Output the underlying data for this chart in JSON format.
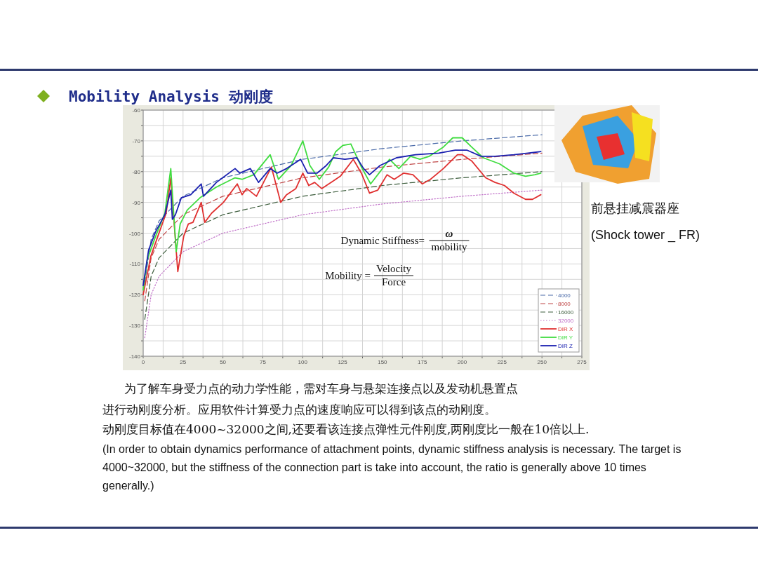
{
  "chart_data": {
    "type": "line",
    "title": "Mobility Analysis 动刚度",
    "xlim": [
      0,
      275
    ],
    "ylim": [
      -140,
      -60
    ],
    "xticks": [
      0,
      {
        "value": 12.5,
        "label": null
      },
      25,
      {
        "value": 37.5,
        "label": null
      },
      50,
      {
        "value": 62.5,
        "label": null
      },
      75,
      {
        "value": 87.5,
        "label": null
      },
      100,
      {
        "value": 112.5,
        "label": null
      },
      125,
      {
        "value": 137.5,
        "label": null
      },
      150,
      {
        "value": 162.5,
        "label": null
      },
      175,
      {
        "value": 187.5,
        "label": null
      },
      200,
      {
        "value": 212.5,
        "label": null
      },
      225,
      {
        "value": 237.5,
        "label": null
      },
      250,
      {
        "value": 262.5,
        "label": null
      },
      275
    ],
    "yticks": [
      -140,
      {
        "value": -135,
        "label": null
      },
      -130,
      {
        "value": -125,
        "label": null
      },
      -120,
      {
        "value": -115,
        "label": null
      },
      -110,
      {
        "value": -105,
        "label": null
      },
      -100,
      {
        "value": -95,
        "label": null
      },
      -90,
      {
        "value": -85,
        "label": null
      },
      -80,
      {
        "value": -75,
        "label": null
      },
      -70,
      {
        "value": -65,
        "label": null
      },
      -60
    ],
    "grid": true,
    "legend": "bottom right",
    "series": [
      {
        "name": "4000",
        "color": "#4a6aa8",
        "line_style": "dashed",
        "x": [
          1,
          5,
          10,
          25,
          50,
          100,
          150,
          200,
          250
        ],
        "values": [
          -116,
          -102,
          -96,
          -88,
          -82,
          -76,
          -72.5,
          -70,
          -68
        ]
      },
      {
        "name": "8000",
        "color": "#c04848",
        "line_style": "dashed",
        "x": [
          1,
          5,
          10,
          25,
          50,
          100,
          150,
          200,
          250
        ],
        "values": [
          -122,
          -108,
          -102,
          -94,
          -88,
          -82,
          -78.5,
          -76,
          -74
        ]
      },
      {
        "name": "16000",
        "color": "#3e5e3e",
        "line_style": "dashed",
        "x": [
          1,
          5,
          10,
          25,
          50,
          100,
          150,
          200,
          250
        ],
        "values": [
          -128,
          -114,
          -108,
          -100,
          -94,
          -88,
          -84.5,
          -82,
          -80
        ]
      },
      {
        "name": "32000",
        "color": "#c070c8",
        "line_style": "dotted",
        "x": [
          1,
          5,
          10,
          25,
          50,
          100,
          150,
          200,
          250
        ],
        "values": [
          -134,
          -120,
          -114,
          -106,
          -100,
          -94,
          -90.5,
          -88,
          -86
        ]
      },
      {
        "name": "DIR X",
        "color": "#e03030",
        "line_style": "solid",
        "x": [
          0,
          4.8,
          9.2,
          14.4,
          17.3,
          21.7,
          25.4,
          28.3,
          31.2,
          36.4,
          38.6,
          42.9,
          50.3,
          59,
          62,
          64.9,
          71,
          80.4,
          86.2,
          89.9,
          95.7,
          100.1,
          103.8,
          107.5,
          111.9,
          119.2,
          123.6,
          131.7,
          136.8,
          141.9,
          147.1,
          152.9,
          157.4,
          163.2,
          169.1,
          175,
          180.1,
          188.2,
          197,
          200,
          205.9,
          214.7,
          220.6,
          226.5,
          232.4,
          239.7,
          244.1,
          249.3
        ],
        "values": [
          -120,
          -107.5,
          -101,
          -93.5,
          -82,
          -112.5,
          -101,
          -97,
          -96.5,
          -90,
          -96.5,
          -93.5,
          -90,
          -84,
          -87.5,
          -85.5,
          -88,
          -78.5,
          -90,
          -87.5,
          -85.5,
          -80.5,
          -84.5,
          -83.5,
          -85.5,
          -83,
          -81.5,
          -76,
          -80.5,
          -87,
          -86,
          -81,
          -82.5,
          -80.5,
          -81,
          -84,
          -82.5,
          -79,
          -74.5,
          -74.5,
          -76.5,
          -82,
          -83.5,
          -84.5,
          -87,
          -89,
          -89,
          -87.5
        ]
      },
      {
        "name": "DIR Y",
        "color": "#40dc40",
        "line_style": "solid",
        "x": [
          0,
          2.6,
          7.8,
          13.6,
          17.3,
          20.7,
          23.2,
          27.6,
          35.6,
          45.9,
          57.6,
          62,
          69.4,
          79.6,
          84.8,
          92.8,
          100.1,
          104.5,
          110.4,
          116.3,
          120.7,
          125.1,
          130.2,
          136.8,
          142.6,
          150,
          154.4,
          160.3,
          167.6,
          173.5,
          179.4,
          188.2,
          194.1,
          200,
          205.9,
          213.2,
          223.5,
          232.4,
          239.7,
          245.6,
          249.3
        ],
        "values": [
          -118.5,
          -108.5,
          -101,
          -93.5,
          -79,
          -106,
          -97,
          -92.5,
          -88.5,
          -85,
          -82,
          -82.5,
          -81,
          -74.5,
          -82.5,
          -78,
          -70,
          -78,
          -82.5,
          -78.5,
          -73.5,
          -71.5,
          -71,
          -78.5,
          -84,
          -79,
          -76,
          -79,
          -75,
          -76,
          -75,
          -72,
          -69,
          -69,
          -72,
          -75.5,
          -77.5,
          -80.5,
          -81.5,
          -81,
          -80.5
        ]
      },
      {
        "name": "DIR Z",
        "color": "#1a20b0",
        "line_style": "solid",
        "x": [
          0,
          3.4,
          7.8,
          13.6,
          17.3,
          18.3,
          20.2,
          23.9,
          29.8,
          36.4,
          37.8,
          45.9,
          57.6,
          60.6,
          67.2,
          72.3,
          79.6,
          84,
          89.9,
          98.7,
          103.1,
          109,
          114.8,
          119.2,
          126.5,
          133.9,
          138.2,
          141.9,
          148.5,
          158.8,
          170.6,
          185.3,
          195.6,
          202.9,
          211.8,
          220.6,
          232.4,
          241.2,
          249.3
        ],
        "values": [
          -117,
          -105.5,
          -99.5,
          -94,
          -86,
          -95.5,
          -94,
          -88.5,
          -87.5,
          -84,
          -88,
          -83.5,
          -79,
          -80.5,
          -79,
          -83.5,
          -79,
          -80.5,
          -79,
          -76,
          -80.5,
          -80.5,
          -78,
          -75.5,
          -76,
          -75.5,
          -79,
          -81,
          -78,
          -75.5,
          -74.5,
          -74,
          -73,
          -73,
          -75,
          -75,
          -74.5,
          -74,
          -73.5
        ]
      }
    ],
    "annotations": [
      "Dynamic Stiffness=",
      "ω",
      "mobility",
      "Mobility =",
      "Velocity",
      "Force",
      "前悬挂减震器座",
      "(Shock tower _ FR)",
      "为了解车身受力点的动力学性能，需对车身与悬架连接点以及发动机悬置点",
      "进行动刚度分析。应用软件计算受力点的速度响应可以得到该点的动刚度。",
      "动刚度目标值在4000~32000之间,还要看该连接点弹性元件刚度,两刚度比一般在10倍以上.",
      "(In order to obtain dynamics performance of attachment points, dynamic stiffness analysis is necessary. The target is 4000~32000, but the stiffness of the connection part is take into account, the ratio is generally above 10 times generally.)"
    ]
  }
}
